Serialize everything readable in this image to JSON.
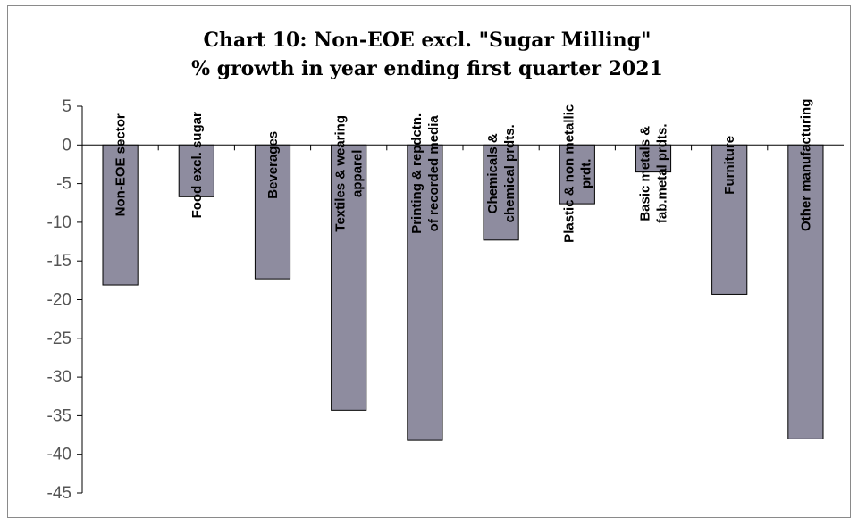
{
  "chart_data": {
    "type": "bar",
    "title": "Chart 10: Non-EOE excl. \"Sugar Milling\"",
    "subtitle": "% growth in year ending first quarter 2021",
    "xlabel": "",
    "ylabel": "",
    "ylim": [
      -45,
      5
    ],
    "yticks": [
      5,
      0,
      -5,
      -10,
      -15,
      -20,
      -25,
      -30,
      -35,
      -40,
      -45
    ],
    "grid": false,
    "bar_color": "#8e8c9f",
    "categories": [
      [
        "Non-EOE sector"
      ],
      [
        "Food excl. sugar"
      ],
      [
        "Beverages"
      ],
      [
        "Textiles & wearing",
        "apparel"
      ],
      [
        "Printing & repdctn.",
        "of recorded media"
      ],
      [
        "Chemicals &",
        "chemical prdts."
      ],
      [
        "Plastic & non metallic",
        "prdt."
      ],
      [
        "Basic metals &",
        "fab.metal prdts."
      ],
      [
        "Furniture"
      ],
      [
        "Other manufacturing"
      ]
    ],
    "values": [
      -18.1,
      -6.7,
      -17.3,
      -34.3,
      -38.2,
      -12.3,
      -7.6,
      -3.5,
      -19.3,
      -38.0
    ]
  }
}
